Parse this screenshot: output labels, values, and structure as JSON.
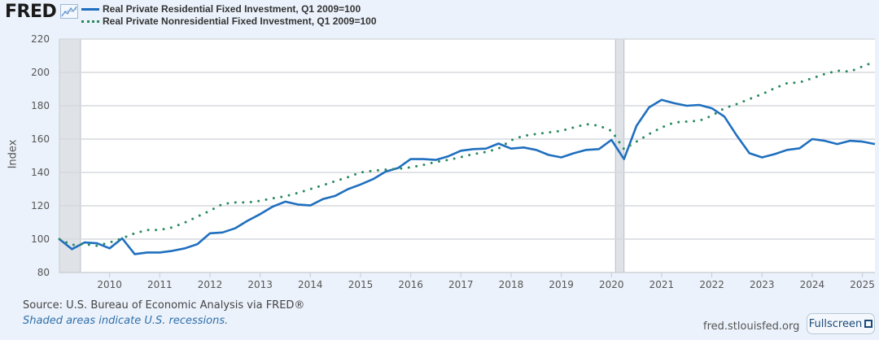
{
  "header": {
    "logo_text": "FRED",
    "logo_icon": "line-chart-icon"
  },
  "footer": {
    "source": "Source: U.S. Bureau of Economic Analysis via FRED®",
    "shaded_note": "Shaded areas indicate U.S. recessions.",
    "site": "fred.stlouisfed.org",
    "fullscreen_label": "Fullscreen",
    "fullscreen_icon": "fullscreen-icon"
  },
  "colors": {
    "residential": "#1f6fbf",
    "nonresidential": "#2a8a5e",
    "recession": "#dfe3e8",
    "background": "#ebf2fb"
  },
  "chart_data": {
    "type": "line",
    "title": "",
    "xlabel": "",
    "ylabel": "Index",
    "ylim": [
      80,
      220
    ],
    "xlim": [
      2009.0,
      2025.25
    ],
    "grid": true,
    "legend_position": "top-left",
    "yticks": [
      "80",
      "100",
      "120",
      "140",
      "160",
      "180",
      "200",
      "220"
    ],
    "xticks": [
      "2010",
      "2011",
      "2012",
      "2013",
      "2014",
      "2015",
      "2016",
      "2017",
      "2018",
      "2019",
      "2020",
      "2021",
      "2022",
      "2023",
      "2024",
      "2025"
    ],
    "x_start": 2009.0,
    "x_step": 0.25,
    "recessions": [
      {
        "start": 2009.0,
        "end": 2009.42
      },
      {
        "start": 2020.08,
        "end": 2020.25
      }
    ],
    "series": [
      {
        "name": "Real Private Residential Fixed Investment, Q1 2009=100",
        "style": "solid",
        "values": [
          100,
          94,
          98,
          97.5,
          94.5,
          100.5,
          91,
          92,
          92,
          93,
          94.5,
          97,
          103.5,
          104,
          106.5,
          111,
          115,
          119.5,
          122.5,
          120.8,
          120.2,
          124,
          126,
          130,
          132.8,
          136,
          140.5,
          142.7,
          148,
          148,
          147.5,
          149.7,
          153,
          154,
          154.3,
          157.3,
          154.3,
          155,
          153.5,
          150.5,
          149,
          151.5,
          153.5,
          154,
          159.5,
          148,
          168,
          179,
          183.5,
          181.5,
          180,
          180.5,
          178.5,
          173.5,
          162,
          151.5,
          149,
          151,
          153.5,
          154.5,
          160,
          159,
          157,
          159,
          158.5,
          157
        ]
      },
      {
        "name": "Real Private Nonresidential Fixed Investment, Q1 2009=100",
        "style": "dotted",
        "values": [
          100,
          96.5,
          97,
          96,
          98,
          100.5,
          103.5,
          105.5,
          105.5,
          107,
          110,
          113.5,
          117,
          121,
          122,
          122,
          123,
          124.5,
          125.7,
          127.7,
          130,
          132.3,
          134.8,
          137.2,
          140,
          141,
          141.7,
          142.2,
          143,
          144.5,
          146.3,
          147.5,
          149.2,
          151,
          152.3,
          154.3,
          159.3,
          162,
          163,
          164,
          165,
          167,
          169,
          168,
          165,
          154,
          158.5,
          163,
          167,
          170,
          170.5,
          171,
          174,
          178.5,
          181,
          184,
          187,
          190.5,
          193.5,
          194,
          196.5,
          199,
          201,
          200.5,
          203.5,
          206.5
        ]
      }
    ]
  }
}
